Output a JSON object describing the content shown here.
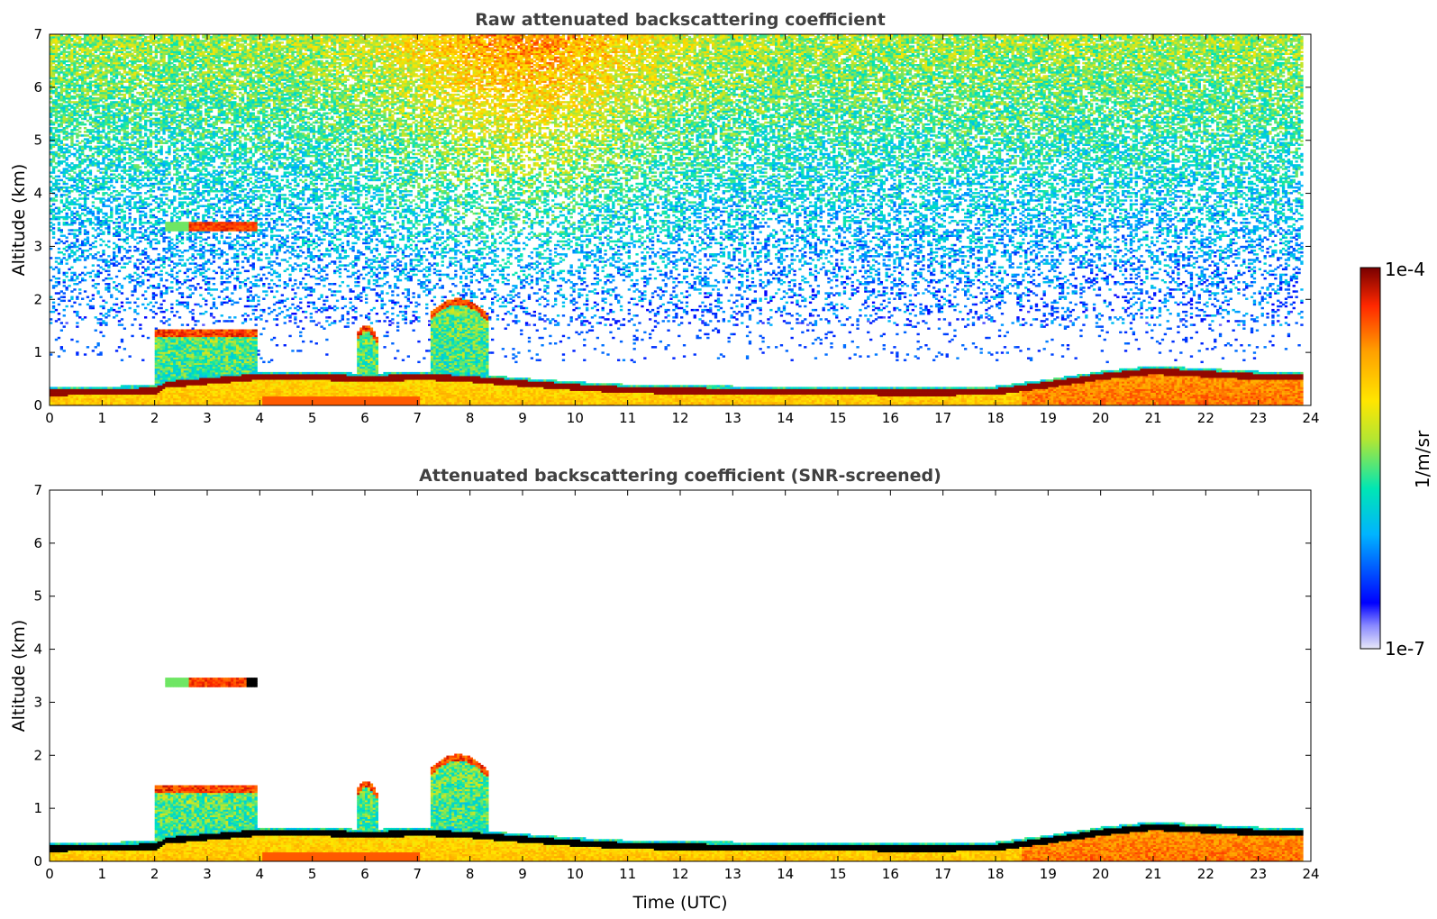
{
  "figure": {
    "colorbar": {
      "label": "1/m/sr",
      "max_label": "1e-4",
      "min_label": "1e-7",
      "scale": "log",
      "range": [
        1e-07,
        0.0001
      ],
      "colormap": "jet",
      "colors": [
        "#e8e8f8",
        "#0000ff",
        "#00b4ff",
        "#00e6b4",
        "#b4e632",
        "#ffe600",
        "#ffa000",
        "#ff2800",
        "#780000"
      ]
    },
    "xlabel": "Time (UTC)"
  },
  "chart_data": [
    {
      "type": "heatmap",
      "title": "Raw attenuated backscattering coefficient",
      "xlabel": "",
      "ylabel": "Altitude (km)",
      "xlim": [
        0,
        24
      ],
      "ylim": [
        0,
        7
      ],
      "x_ticks": [
        "0",
        "1",
        "2",
        "3",
        "4",
        "5",
        "6",
        "7",
        "8",
        "9",
        "10",
        "11",
        "12",
        "13",
        "14",
        "15",
        "16",
        "17",
        "18",
        "19",
        "20",
        "21",
        "22",
        "23",
        "24"
      ],
      "y_ticks": [
        "0",
        "1",
        "2",
        "3",
        "4",
        "5",
        "6",
        "7"
      ],
      "grid": false,
      "features": {
        "boundary_layer_top_km": [
          [
            0,
            0.25
          ],
          [
            2,
            0.28
          ],
          [
            2.2,
            0.4
          ],
          [
            4,
            0.55
          ],
          [
            5,
            0.55
          ],
          [
            6,
            0.5
          ],
          [
            7,
            0.55
          ],
          [
            8,
            0.5
          ],
          [
            9,
            0.42
          ],
          [
            10,
            0.35
          ],
          [
            11,
            0.3
          ],
          [
            12,
            0.28
          ],
          [
            13,
            0.27
          ],
          [
            14,
            0.27
          ],
          [
            15,
            0.27
          ],
          [
            16,
            0.25
          ],
          [
            17,
            0.25
          ],
          [
            18,
            0.27
          ],
          [
            19,
            0.4
          ],
          [
            20,
            0.55
          ],
          [
            21,
            0.65
          ],
          [
            22,
            0.6
          ],
          [
            23,
            0.55
          ],
          [
            23.8,
            0.55
          ]
        ],
        "convective_clouds": [
          {
            "x": [
              2.0,
              3.9
            ],
            "top_km": 1.4
          },
          {
            "x": [
              5.8,
              6.2
            ],
            "top_km": 1.5
          },
          {
            "x": [
              7.2,
              8.3
            ],
            "top_km": 2.0
          }
        ],
        "elevated_layer": {
          "x": [
            2.2,
            3.9
          ],
          "altitude_km": 3.35
        },
        "noise_region_km": [
          1.5,
          7
        ]
      }
    },
    {
      "type": "heatmap",
      "title": "Attenuated backscattering coefficient (SNR-screened)",
      "xlabel": "Time (UTC)",
      "ylabel": "Altitude (km)",
      "xlim": [
        0,
        24
      ],
      "ylim": [
        0,
        7
      ],
      "x_ticks": [
        "0",
        "1",
        "2",
        "3",
        "4",
        "5",
        "6",
        "7",
        "8",
        "9",
        "10",
        "11",
        "12",
        "13",
        "14",
        "15",
        "16",
        "17",
        "18",
        "19",
        "20",
        "21",
        "22",
        "23",
        "24"
      ],
      "y_ticks": [
        "0",
        "1",
        "2",
        "3",
        "4",
        "5",
        "6",
        "7"
      ],
      "grid": false
    }
  ]
}
